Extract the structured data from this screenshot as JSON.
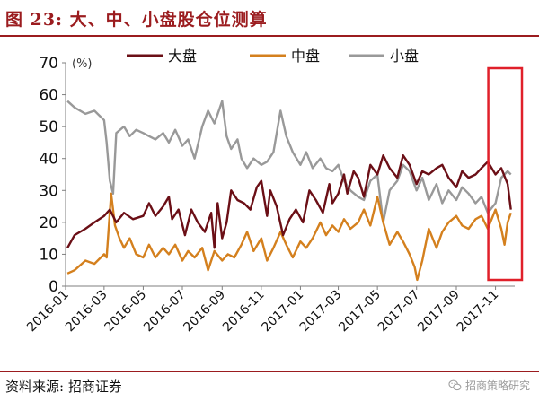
{
  "title": "图 23:  大、中、小盘股仓位测算",
  "source": "资料来源:  招商证券",
  "watermark": "招商策略研究",
  "watermark_icon": "wechat-icon",
  "colors": {
    "title": "#9b1c1f",
    "large": "#6b0f16",
    "mid": "#d4801e",
    "small": "#999999",
    "highlight": "#e0202a"
  },
  "chart_data": {
    "type": "line",
    "unit_label": "(%)",
    "ylim": [
      0,
      70
    ],
    "yticks": [
      0,
      10,
      20,
      30,
      40,
      50,
      60,
      70
    ],
    "xlim": [
      "2016-01",
      "2017-12"
    ],
    "xticks": [
      "2016-01",
      "2016-03",
      "2016-05",
      "2016-07",
      "2016-09",
      "2016-11",
      "2017-01",
      "2017-03",
      "2017-05",
      "2017-07",
      "2017-09",
      "2017-11"
    ],
    "legend_position": "top",
    "highlight_region": [
      "2017-11-01",
      "2017-12-01"
    ],
    "series": [
      {
        "name": "大盘",
        "color": "#6b0f16",
        "points": [
          [
            "2016-01-04",
            12
          ],
          [
            "2016-01-15",
            16
          ],
          [
            "2016-02-01",
            18
          ],
          [
            "2016-02-15",
            20
          ],
          [
            "2016-03-01",
            22
          ],
          [
            "2016-03-10",
            24
          ],
          [
            "2016-03-20",
            20
          ],
          [
            "2016-04-01",
            23
          ],
          [
            "2016-04-15",
            21
          ],
          [
            "2016-05-01",
            22
          ],
          [
            "2016-05-10",
            26
          ],
          [
            "2016-05-20",
            22
          ],
          [
            "2016-06-01",
            25
          ],
          [
            "2016-06-10",
            28
          ],
          [
            "2016-06-15",
            21
          ],
          [
            "2016-06-25",
            24
          ],
          [
            "2016-07-05",
            16
          ],
          [
            "2016-07-15",
            24
          ],
          [
            "2016-07-25",
            20
          ],
          [
            "2016-08-05",
            17
          ],
          [
            "2016-08-15",
            23
          ],
          [
            "2016-08-20",
            12
          ],
          [
            "2016-08-25",
            26
          ],
          [
            "2016-09-01",
            15
          ],
          [
            "2016-09-08",
            20
          ],
          [
            "2016-09-15",
            30
          ],
          [
            "2016-09-25",
            27
          ],
          [
            "2016-10-05",
            26
          ],
          [
            "2016-10-15",
            24
          ],
          [
            "2016-10-25",
            31
          ],
          [
            "2016-11-01",
            33
          ],
          [
            "2016-11-10",
            22
          ],
          [
            "2016-11-15",
            30
          ],
          [
            "2016-11-25",
            25
          ],
          [
            "2016-12-05",
            16
          ],
          [
            "2016-12-15",
            21
          ],
          [
            "2016-12-25",
            24
          ],
          [
            "2017-01-05",
            20
          ],
          [
            "2017-01-15",
            30
          ],
          [
            "2017-01-25",
            27
          ],
          [
            "2017-02-05",
            23
          ],
          [
            "2017-02-15",
            32
          ],
          [
            "2017-02-20",
            26
          ],
          [
            "2017-03-01",
            29
          ],
          [
            "2017-03-10",
            35
          ],
          [
            "2017-03-15",
            29
          ],
          [
            "2017-03-25",
            36
          ],
          [
            "2017-04-01",
            34
          ],
          [
            "2017-04-10",
            28
          ],
          [
            "2017-04-20",
            38
          ],
          [
            "2017-05-01",
            35
          ],
          [
            "2017-05-10",
            41
          ],
          [
            "2017-05-20",
            37
          ],
          [
            "2017-06-01",
            34
          ],
          [
            "2017-06-10",
            41
          ],
          [
            "2017-06-20",
            38
          ],
          [
            "2017-07-01",
            32
          ],
          [
            "2017-07-10",
            36
          ],
          [
            "2017-07-20",
            35
          ],
          [
            "2017-08-01",
            37
          ],
          [
            "2017-08-10",
            38
          ],
          [
            "2017-08-20",
            34
          ],
          [
            "2017-09-01",
            31
          ],
          [
            "2017-09-10",
            36
          ],
          [
            "2017-09-20",
            34
          ],
          [
            "2017-10-01",
            35
          ],
          [
            "2017-10-10",
            37
          ],
          [
            "2017-10-20",
            39
          ],
          [
            "2017-11-01",
            35
          ],
          [
            "2017-11-10",
            37
          ],
          [
            "2017-11-20",
            32
          ],
          [
            "2017-11-25",
            24
          ]
        ]
      },
      {
        "name": "中盘",
        "color": "#d4801e",
        "points": [
          [
            "2016-01-04",
            4
          ],
          [
            "2016-01-15",
            5
          ],
          [
            "2016-02-01",
            8
          ],
          [
            "2016-02-15",
            7
          ],
          [
            "2016-03-01",
            10
          ],
          [
            "2016-03-05",
            9
          ],
          [
            "2016-03-12",
            29
          ],
          [
            "2016-03-18",
            19
          ],
          [
            "2016-03-25",
            15
          ],
          [
            "2016-04-01",
            12
          ],
          [
            "2016-04-10",
            15
          ],
          [
            "2016-04-20",
            10
          ],
          [
            "2016-05-01",
            9
          ],
          [
            "2016-05-10",
            13
          ],
          [
            "2016-05-20",
            9
          ],
          [
            "2016-06-01",
            12
          ],
          [
            "2016-06-10",
            10
          ],
          [
            "2016-06-20",
            13
          ],
          [
            "2016-07-01",
            8
          ],
          [
            "2016-07-10",
            11
          ],
          [
            "2016-07-20",
            9
          ],
          [
            "2016-08-01",
            12
          ],
          [
            "2016-08-10",
            5
          ],
          [
            "2016-08-20",
            11
          ],
          [
            "2016-09-01",
            8
          ],
          [
            "2016-09-10",
            10
          ],
          [
            "2016-09-20",
            9
          ],
          [
            "2016-10-01",
            13
          ],
          [
            "2016-10-10",
            17
          ],
          [
            "2016-10-20",
            11
          ],
          [
            "2016-11-01",
            15
          ],
          [
            "2016-11-10",
            8
          ],
          [
            "2016-11-20",
            12
          ],
          [
            "2016-12-01",
            17
          ],
          [
            "2016-12-10",
            13
          ],
          [
            "2016-12-20",
            9
          ],
          [
            "2017-01-01",
            14
          ],
          [
            "2017-01-10",
            12
          ],
          [
            "2017-01-20",
            15
          ],
          [
            "2017-02-01",
            20
          ],
          [
            "2017-02-10",
            16
          ],
          [
            "2017-02-20",
            19
          ],
          [
            "2017-03-01",
            17
          ],
          [
            "2017-03-10",
            21
          ],
          [
            "2017-03-20",
            18
          ],
          [
            "2017-04-01",
            20
          ],
          [
            "2017-04-10",
            24
          ],
          [
            "2017-04-20",
            19
          ],
          [
            "2017-05-01",
            28
          ],
          [
            "2017-05-10",
            20
          ],
          [
            "2017-05-20",
            13
          ],
          [
            "2017-06-01",
            17
          ],
          [
            "2017-06-10",
            14
          ],
          [
            "2017-06-20",
            10
          ],
          [
            "2017-06-28",
            6
          ],
          [
            "2017-07-02",
            2
          ],
          [
            "2017-07-10",
            8
          ],
          [
            "2017-07-20",
            18
          ],
          [
            "2017-08-01",
            12
          ],
          [
            "2017-08-10",
            17
          ],
          [
            "2017-08-20",
            20
          ],
          [
            "2017-09-01",
            22
          ],
          [
            "2017-09-10",
            19
          ],
          [
            "2017-09-20",
            18
          ],
          [
            "2017-10-01",
            21
          ],
          [
            "2017-10-10",
            22
          ],
          [
            "2017-10-20",
            18
          ],
          [
            "2017-11-01",
            24
          ],
          [
            "2017-11-10",
            18
          ],
          [
            "2017-11-15",
            13
          ],
          [
            "2017-11-20",
            20
          ],
          [
            "2017-11-25",
            23
          ]
        ]
      },
      {
        "name": "小盘",
        "color": "#999999",
        "points": [
          [
            "2016-01-04",
            58
          ],
          [
            "2016-01-15",
            56
          ],
          [
            "2016-02-01",
            54
          ],
          [
            "2016-02-15",
            55
          ],
          [
            "2016-03-01",
            52
          ],
          [
            "2016-03-05",
            45
          ],
          [
            "2016-03-10",
            33
          ],
          [
            "2016-03-15",
            29
          ],
          [
            "2016-03-20",
            48
          ],
          [
            "2016-04-01",
            50
          ],
          [
            "2016-04-10",
            47
          ],
          [
            "2016-04-20",
            49
          ],
          [
            "2016-05-01",
            48
          ],
          [
            "2016-05-10",
            47
          ],
          [
            "2016-05-20",
            46
          ],
          [
            "2016-06-01",
            48
          ],
          [
            "2016-06-10",
            45
          ],
          [
            "2016-06-20",
            49
          ],
          [
            "2016-07-01",
            44
          ],
          [
            "2016-07-10",
            46
          ],
          [
            "2016-07-20",
            40
          ],
          [
            "2016-08-01",
            50
          ],
          [
            "2016-08-10",
            55
          ],
          [
            "2016-08-20",
            51
          ],
          [
            "2016-09-01",
            58
          ],
          [
            "2016-09-08",
            47
          ],
          [
            "2016-09-15",
            43
          ],
          [
            "2016-09-25",
            46
          ],
          [
            "2016-10-01",
            40
          ],
          [
            "2016-10-10",
            37
          ],
          [
            "2016-10-20",
            40
          ],
          [
            "2016-11-01",
            38
          ],
          [
            "2016-11-10",
            39
          ],
          [
            "2016-11-20",
            42
          ],
          [
            "2016-12-01",
            55
          ],
          [
            "2016-12-10",
            47
          ],
          [
            "2016-12-20",
            42
          ],
          [
            "2017-01-01",
            38
          ],
          [
            "2017-01-10",
            42
          ],
          [
            "2017-01-20",
            37
          ],
          [
            "2017-02-01",
            40
          ],
          [
            "2017-02-10",
            37
          ],
          [
            "2017-02-20",
            36
          ],
          [
            "2017-03-01",
            38
          ],
          [
            "2017-03-10",
            33
          ],
          [
            "2017-03-20",
            30
          ],
          [
            "2017-04-01",
            28
          ],
          [
            "2017-04-10",
            27
          ],
          [
            "2017-04-20",
            33
          ],
          [
            "2017-05-01",
            35
          ],
          [
            "2017-05-10",
            20
          ],
          [
            "2017-05-20",
            30
          ],
          [
            "2017-06-01",
            33
          ],
          [
            "2017-06-10",
            38
          ],
          [
            "2017-06-20",
            36
          ],
          [
            "2017-07-01",
            30
          ],
          [
            "2017-07-10",
            34
          ],
          [
            "2017-07-20",
            27
          ],
          [
            "2017-08-01",
            32
          ],
          [
            "2017-08-10",
            26
          ],
          [
            "2017-08-20",
            30
          ],
          [
            "2017-09-01",
            27
          ],
          [
            "2017-09-10",
            31
          ],
          [
            "2017-09-20",
            29
          ],
          [
            "2017-10-01",
            26
          ],
          [
            "2017-10-10",
            28
          ],
          [
            "2017-10-20",
            23
          ],
          [
            "2017-11-01",
            26
          ],
          [
            "2017-11-10",
            34
          ],
          [
            "2017-11-20",
            36
          ],
          [
            "2017-11-25",
            35
          ]
        ]
      }
    ]
  }
}
